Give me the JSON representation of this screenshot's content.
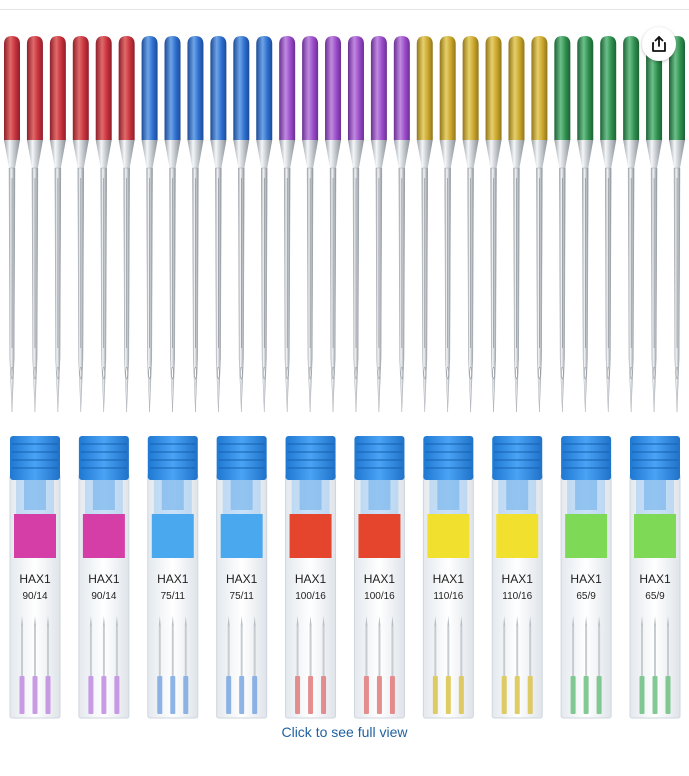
{
  "share": {
    "icon": "share-icon"
  },
  "image": {
    "alt": "",
    "needle_colors": [
      {
        "name": "red",
        "top": "#e06a6a",
        "mid": "#c8323d",
        "dark": "#8e1f29"
      },
      {
        "name": "blue",
        "top": "#6ea4e6",
        "mid": "#2e6fd0",
        "dark": "#1c4b97"
      },
      {
        "name": "purple",
        "top": "#c08ae0",
        "mid": "#9a4cc9",
        "dark": "#6a2f93"
      },
      {
        "name": "gold",
        "top": "#e6cf6a",
        "mid": "#c9a62d",
        "dark": "#93761a"
      },
      {
        "name": "green",
        "top": "#6cc08a",
        "mid": "#2f8f4e",
        "dark": "#1d6235"
      }
    ],
    "needles_per_color": 6,
    "cases": [
      {
        "brand": "HAX1",
        "size": "90/14",
        "label_color": "#d43ea6",
        "needle_color": "#c08ae0"
      },
      {
        "brand": "HAX1",
        "size": "90/14",
        "label_color": "#d43ea6",
        "needle_color": "#c08ae0"
      },
      {
        "brand": "HAX1",
        "size": "75/11",
        "label_color": "#4aa8ef",
        "needle_color": "#7aa6e0"
      },
      {
        "brand": "HAX1",
        "size": "75/11",
        "label_color": "#4aa8ef",
        "needle_color": "#7aa6e0"
      },
      {
        "brand": "HAX1",
        "size": "100/16",
        "label_color": "#e5442d",
        "needle_color": "#e07a7a"
      },
      {
        "brand": "HAX1",
        "size": "100/16",
        "label_color": "#e5442d",
        "needle_color": "#e07a7a"
      },
      {
        "brand": "HAX1",
        "size": "110/16",
        "label_color": "#f1e02d",
        "needle_color": "#d9c34a"
      },
      {
        "brand": "HAX1",
        "size": "110/16",
        "label_color": "#f1e02d",
        "needle_color": "#d9c34a"
      },
      {
        "brand": "HAX1",
        "size": "65/9",
        "label_color": "#7ed957",
        "needle_color": "#6cbf80"
      },
      {
        "brand": "HAX1",
        "size": "65/9",
        "label_color": "#7ed957",
        "needle_color": "#6cbf80"
      }
    ],
    "case_cap_color": "#2f8ee6"
  },
  "link": {
    "full_view": "Click to see full view"
  }
}
